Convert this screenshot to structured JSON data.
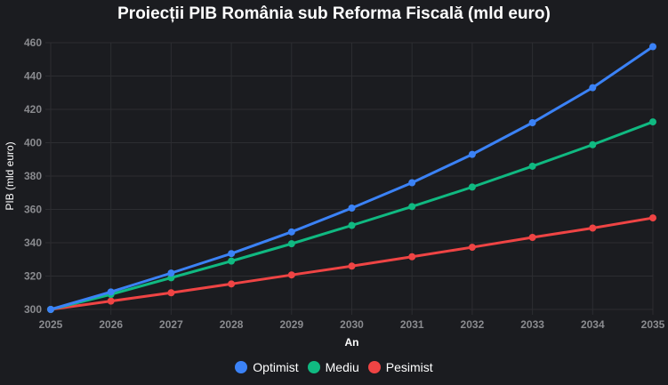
{
  "chart_data": {
    "type": "line",
    "title": "Proiecții PIB România sub Reforma Fiscală (mld euro)",
    "xlabel": "An",
    "ylabel": "PIB (mld euro)",
    "x": [
      2025,
      2026,
      2027,
      2028,
      2029,
      2030,
      2031,
      2032,
      2033,
      2034,
      2035
    ],
    "ylim": [
      300,
      460
    ],
    "yticks": [
      300,
      320,
      340,
      360,
      380,
      400,
      420,
      440,
      460
    ],
    "grid": true,
    "legend": "bottom",
    "series": [
      {
        "name": "Optimist",
        "color": "#3b82f6",
        "values": [
          300,
          310.5,
          321.8,
          333.5,
          346.5,
          360.8,
          376,
          393,
          412,
          433,
          457.6
        ]
      },
      {
        "name": "Mediu",
        "color": "#10b981",
        "values": [
          300,
          309,
          319,
          329,
          339.4,
          350.4,
          361.7,
          373.4,
          385.9,
          398.8,
          412.5
        ]
      },
      {
        "name": "Pesimist",
        "color": "#ef4444",
        "values": [
          300,
          305,
          310,
          315.3,
          320.7,
          326,
          331.6,
          337.3,
          343.2,
          348.8,
          354.9
        ]
      }
    ]
  }
}
